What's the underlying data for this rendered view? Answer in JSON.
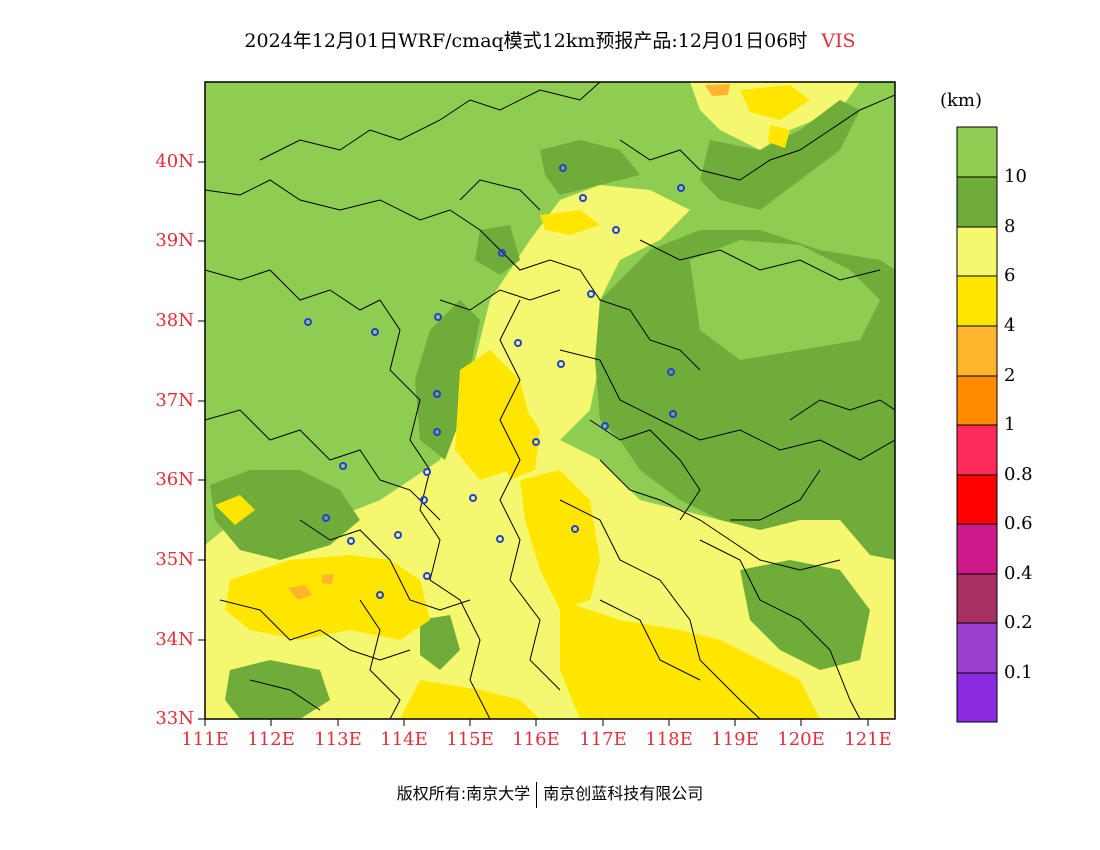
{
  "title": {
    "main": "2024年12月01日WRF/cmaq模式12km预报产品:12月01日06时",
    "variable": "VIS"
  },
  "colors": {
    "label_red": "#e0303a",
    "station_marker": "#2040e0",
    "palette": [
      "#8a2be2",
      "#9b3fd0",
      "#a83060",
      "#cc1a8a",
      "#ff0000",
      "#ff2b5a",
      "#ff8c00",
      "#ffb52e",
      "#ffe600",
      "#f5f76e",
      "#6fac3a",
      "#8fcc52"
    ]
  },
  "map": {
    "lat_labels": [
      "40N",
      "39N",
      "38N",
      "37N",
      "36N",
      "35N",
      "34N",
      "33N"
    ],
    "lon_labels": [
      "111E",
      "112E",
      "113E",
      "114E",
      "115E",
      "116E",
      "117E",
      "118E",
      "119E",
      "120E",
      "121E"
    ],
    "extent": {
      "lon_min": 111,
      "lon_max": 121.4,
      "lat_min": 33,
      "lat_max": 41
    }
  },
  "legend": {
    "unit": "(km)",
    "levels": [
      "10",
      "8",
      "6",
      "4",
      "2",
      "1",
      "0.8",
      "0.6",
      "0.4",
      "0.2",
      "0.1"
    ]
  },
  "copyright": {
    "left": "版权所有:南京大学",
    "right": "南京创蓝科技有限公司"
  }
}
